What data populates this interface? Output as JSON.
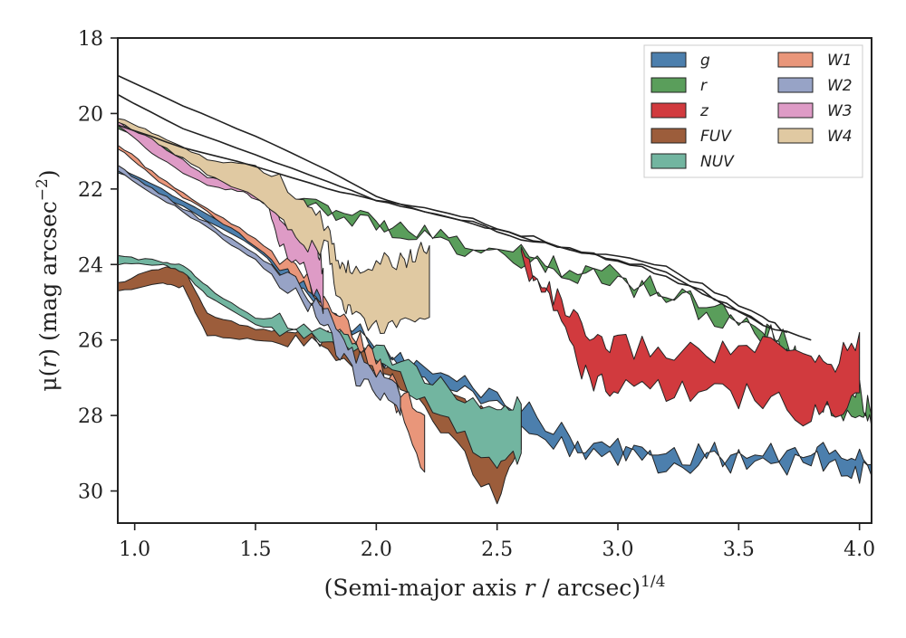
{
  "chart_data": {
    "type": "area",
    "xlabel": "(Semi-major axis r / arcsec)",
    "xlabel_prefix": "(Semi-major axis ",
    "xlabel_var": "r",
    "xlabel_mid": " / arcsec)",
    "xlabel_sup": "1/4",
    "ylabel_prefix": "μ(",
    "ylabel_var": "r",
    "ylabel_mid": ") (mag arcsec",
    "ylabel_sup": "−2",
    "ylabel_suffix": ")",
    "xlim": [
      0.93,
      4.05
    ],
    "ylim": [
      30.85,
      18
    ],
    "y_inverted": true,
    "xticks": [
      1.0,
      1.5,
      2.0,
      2.5,
      3.0,
      3.5,
      4.0
    ],
    "xtick_labels": [
      "1.0",
      "1.5",
      "2.0",
      "2.5",
      "3.0",
      "3.5",
      "4.0"
    ],
    "yticks": [
      18,
      20,
      22,
      24,
      26,
      28,
      30
    ],
    "ytick_labels": [
      "18",
      "20",
      "22",
      "24",
      "26",
      "28",
      "30"
    ],
    "grid": false,
    "legend_position": "top-right",
    "legend_columns": 2,
    "series": [
      {
        "name": "g",
        "color": "#4c7fad",
        "upper": [
          [
            0.93,
            21.4
          ],
          [
            1.2,
            22.3
          ],
          [
            1.5,
            23.4
          ],
          [
            1.8,
            25.0
          ],
          [
            2.0,
            26.2
          ],
          [
            2.2,
            26.8
          ],
          [
            2.4,
            27.2
          ],
          [
            2.6,
            27.8
          ],
          [
            2.8,
            28.6
          ],
          [
            3.0,
            28.9
          ],
          [
            3.2,
            29.0
          ],
          [
            3.4,
            29.0
          ],
          [
            3.6,
            29.1
          ],
          [
            3.8,
            29.0
          ],
          [
            3.95,
            29.0
          ],
          [
            4.05,
            29.3
          ]
        ],
        "lower": [
          [
            0.93,
            21.55
          ],
          [
            1.2,
            22.45
          ],
          [
            1.5,
            23.55
          ],
          [
            1.8,
            25.2
          ],
          [
            2.0,
            26.4
          ],
          [
            2.2,
            27.0
          ],
          [
            2.4,
            27.4
          ],
          [
            2.6,
            28.0
          ],
          [
            2.8,
            28.9
          ],
          [
            3.0,
            29.15
          ],
          [
            3.2,
            29.2
          ],
          [
            3.4,
            29.2
          ],
          [
            3.6,
            29.3
          ],
          [
            3.8,
            29.2
          ],
          [
            3.95,
            29.3
          ],
          [
            4.05,
            29.6
          ]
        ]
      },
      {
        "name": "r",
        "color": "#5a9e5b",
        "upper": [
          [
            0.93,
            20.3
          ],
          [
            1.2,
            21.1
          ],
          [
            1.5,
            21.8
          ],
          [
            1.8,
            22.5
          ],
          [
            2.0,
            22.9
          ],
          [
            2.2,
            23.2
          ],
          [
            2.4,
            23.5
          ],
          [
            2.6,
            23.75
          ],
          [
            2.8,
            24.05
          ],
          [
            3.0,
            24.3
          ],
          [
            3.2,
            24.6
          ],
          [
            3.4,
            25.1
          ],
          [
            3.6,
            25.6
          ],
          [
            3.7,
            26.0
          ],
          [
            3.8,
            27.0
          ],
          [
            3.9,
            27.6
          ],
          [
            4.0,
            27.4
          ],
          [
            4.05,
            28.0
          ]
        ],
        "lower": [
          [
            0.93,
            20.4
          ],
          [
            1.2,
            21.2
          ],
          [
            1.5,
            21.9
          ],
          [
            1.8,
            22.6
          ],
          [
            2.0,
            23.0
          ],
          [
            2.2,
            23.3
          ],
          [
            2.4,
            23.6
          ],
          [
            2.6,
            23.85
          ],
          [
            2.8,
            24.2
          ],
          [
            3.0,
            24.45
          ],
          [
            3.2,
            24.75
          ],
          [
            3.4,
            25.3
          ],
          [
            3.6,
            25.8
          ],
          [
            3.7,
            26.3
          ],
          [
            3.8,
            27.3
          ],
          [
            3.9,
            27.9
          ],
          [
            4.0,
            27.8
          ],
          [
            4.05,
            28.3
          ]
        ]
      },
      {
        "name": "z",
        "color": "#d13a3e",
        "upper": [
          [
            2.6,
            23.7
          ],
          [
            2.7,
            24.6
          ],
          [
            2.8,
            25.3
          ],
          [
            2.9,
            26.2
          ],
          [
            3.0,
            26.1
          ],
          [
            3.2,
            26.3
          ],
          [
            3.4,
            26.3
          ],
          [
            3.6,
            26.2
          ],
          [
            3.8,
            26.5
          ],
          [
            3.9,
            26.6
          ],
          [
            4.0,
            25.8
          ]
        ],
        "lower": [
          [
            2.6,
            23.8
          ],
          [
            2.7,
            24.8
          ],
          [
            2.8,
            26.2
          ],
          [
            2.9,
            27.2
          ],
          [
            3.0,
            27.3
          ],
          [
            3.2,
            27.4
          ],
          [
            3.4,
            27.5
          ],
          [
            3.6,
            27.5
          ],
          [
            3.8,
            28.1
          ],
          [
            3.9,
            27.8
          ],
          [
            4.0,
            27.4
          ]
        ]
      },
      {
        "name": "FUV",
        "color": "#9c5d3b",
        "upper": [
          [
            0.93,
            24.5
          ],
          [
            1.1,
            24.1
          ],
          [
            1.2,
            24.1
          ],
          [
            1.3,
            25.3
          ],
          [
            1.5,
            25.7
          ],
          [
            1.7,
            25.8
          ],
          [
            1.9,
            26.2
          ],
          [
            2.1,
            26.8
          ],
          [
            2.3,
            27.5
          ],
          [
            2.5,
            28.2
          ],
          [
            2.6,
            27.8
          ]
        ],
        "lower": [
          [
            0.93,
            24.7
          ],
          [
            1.1,
            24.5
          ],
          [
            1.2,
            24.6
          ],
          [
            1.3,
            25.9
          ],
          [
            1.5,
            26.0
          ],
          [
            1.7,
            26.1
          ],
          [
            1.9,
            26.5
          ],
          [
            2.1,
            27.3
          ],
          [
            2.3,
            28.5
          ],
          [
            2.5,
            30.3
          ],
          [
            2.6,
            28.9
          ]
        ]
      },
      {
        "name": "NUV",
        "color": "#72b5a0",
        "upper": [
          [
            0.93,
            23.8
          ],
          [
            1.1,
            23.9
          ],
          [
            1.2,
            24.0
          ],
          [
            1.3,
            24.6
          ],
          [
            1.5,
            25.4
          ],
          [
            1.7,
            25.5
          ],
          [
            1.9,
            25.9
          ],
          [
            2.1,
            26.6
          ],
          [
            2.3,
            27.3
          ],
          [
            2.5,
            27.9
          ],
          [
            2.6,
            27.7
          ]
        ],
        "lower": [
          [
            0.93,
            24.0
          ],
          [
            1.1,
            24.0
          ],
          [
            1.2,
            24.2
          ],
          [
            1.3,
            24.8
          ],
          [
            1.5,
            25.6
          ],
          [
            1.7,
            25.8
          ],
          [
            1.9,
            26.2
          ],
          [
            2.1,
            27.0
          ],
          [
            2.3,
            28.2
          ],
          [
            2.5,
            29.5
          ],
          [
            2.6,
            29.0
          ]
        ]
      },
      {
        "name": "W1",
        "color": "#e9967a",
        "upper": [
          [
            0.93,
            20.8
          ],
          [
            1.1,
            21.7
          ],
          [
            1.3,
            22.5
          ],
          [
            1.5,
            23.3
          ],
          [
            1.7,
            24.3
          ],
          [
            1.8,
            25.1
          ],
          [
            1.9,
            25.7
          ],
          [
            2.0,
            26.5
          ],
          [
            2.1,
            27.3
          ],
          [
            2.2,
            28.0
          ]
        ],
        "lower": [
          [
            0.93,
            20.9
          ],
          [
            1.1,
            21.8
          ],
          [
            1.3,
            22.6
          ],
          [
            1.5,
            23.5
          ],
          [
            1.7,
            24.6
          ],
          [
            1.8,
            25.5
          ],
          [
            1.9,
            26.0
          ],
          [
            2.0,
            26.9
          ],
          [
            2.1,
            28.0
          ],
          [
            2.2,
            29.5
          ]
        ]
      },
      {
        "name": "W2",
        "color": "#97a3c6",
        "upper": [
          [
            0.93,
            21.4
          ],
          [
            1.1,
            22.1
          ],
          [
            1.3,
            22.9
          ],
          [
            1.5,
            23.7
          ],
          [
            1.7,
            24.7
          ],
          [
            1.8,
            25.4
          ],
          [
            1.9,
            26.3
          ],
          [
            2.0,
            26.9
          ],
          [
            2.1,
            27.5
          ]
        ],
        "lower": [
          [
            0.93,
            21.5
          ],
          [
            1.1,
            22.2
          ],
          [
            1.3,
            23.0
          ],
          [
            1.5,
            23.9
          ],
          [
            1.7,
            25.0
          ],
          [
            1.8,
            25.8
          ],
          [
            1.9,
            26.9
          ],
          [
            2.0,
            27.3
          ],
          [
            2.1,
            28.0
          ]
        ]
      },
      {
        "name": "W3",
        "color": "#de9bc6",
        "upper": [
          [
            0.93,
            20.2
          ],
          [
            1.1,
            20.8
          ],
          [
            1.3,
            21.7
          ],
          [
            1.45,
            21.9
          ],
          [
            1.55,
            22.2
          ],
          [
            1.65,
            23.0
          ],
          [
            1.75,
            23.5
          ],
          [
            1.78,
            24.1
          ]
        ],
        "lower": [
          [
            0.93,
            20.3
          ],
          [
            1.1,
            21.2
          ],
          [
            1.3,
            21.9
          ],
          [
            1.45,
            22.1
          ],
          [
            1.55,
            22.4
          ],
          [
            1.6,
            23.5
          ],
          [
            1.7,
            24.0
          ],
          [
            1.78,
            25.3
          ]
        ]
      },
      {
        "name": "W4",
        "color": "#e0c9a2",
        "upper": [
          [
            0.93,
            20.1
          ],
          [
            1.1,
            20.6
          ],
          [
            1.3,
            21.2
          ],
          [
            1.5,
            21.4
          ],
          [
            1.7,
            22.3
          ],
          [
            1.8,
            23.0
          ],
          [
            1.85,
            24.0
          ],
          [
            1.9,
            24.1
          ],
          [
            2.0,
            23.9
          ],
          [
            2.1,
            23.9
          ],
          [
            2.15,
            23.8
          ],
          [
            2.22,
            23.5
          ]
        ],
        "lower": [
          [
            0.93,
            20.2
          ],
          [
            1.1,
            20.8
          ],
          [
            1.3,
            21.6
          ],
          [
            1.5,
            22.2
          ],
          [
            1.6,
            22.7
          ],
          [
            1.7,
            23.4
          ],
          [
            1.8,
            23.6
          ],
          [
            1.85,
            25.1
          ],
          [
            1.9,
            25.2
          ],
          [
            2.0,
            25.7
          ],
          [
            2.1,
            25.4
          ],
          [
            2.22,
            25.4
          ]
        ]
      }
    ],
    "lines": [
      {
        "color": "#222222",
        "points": [
          [
            0.93,
            19.0
          ],
          [
            1.2,
            19.8
          ],
          [
            1.5,
            20.6
          ],
          [
            1.8,
            21.5
          ],
          [
            2.0,
            22.2
          ],
          [
            2.2,
            22.6
          ],
          [
            2.4,
            22.9
          ],
          [
            2.6,
            23.3
          ],
          [
            2.8,
            23.6
          ],
          [
            3.0,
            23.8
          ],
          [
            3.2,
            24.1
          ],
          [
            3.4,
            24.7
          ],
          [
            3.6,
            25.4
          ],
          [
            3.7,
            25.8
          ]
        ]
      },
      {
        "color": "#222222",
        "points": [
          [
            0.93,
            19.5
          ],
          [
            1.2,
            20.4
          ],
          [
            1.5,
            21.1
          ],
          [
            1.8,
            21.8
          ],
          [
            2.0,
            22.3
          ],
          [
            2.2,
            22.6
          ],
          [
            2.4,
            22.9
          ],
          [
            2.6,
            23.3
          ],
          [
            2.8,
            23.6
          ],
          [
            3.0,
            23.9
          ],
          [
            3.2,
            24.3
          ],
          [
            3.4,
            24.9
          ],
          [
            3.6,
            25.6
          ]
        ]
      },
      {
        "color": "#222222",
        "points": [
          [
            0.93,
            20.3
          ],
          [
            1.2,
            20.9
          ],
          [
            1.5,
            21.4
          ],
          [
            1.8,
            22.0
          ],
          [
            2.0,
            22.3
          ],
          [
            2.2,
            22.5
          ],
          [
            2.4,
            22.8
          ],
          [
            2.6,
            23.2
          ],
          [
            2.8,
            23.6
          ],
          [
            3.0,
            23.9
          ],
          [
            3.2,
            24.2
          ],
          [
            3.4,
            24.9
          ],
          [
            3.6,
            25.6
          ],
          [
            3.8,
            26.0
          ]
        ]
      }
    ]
  }
}
